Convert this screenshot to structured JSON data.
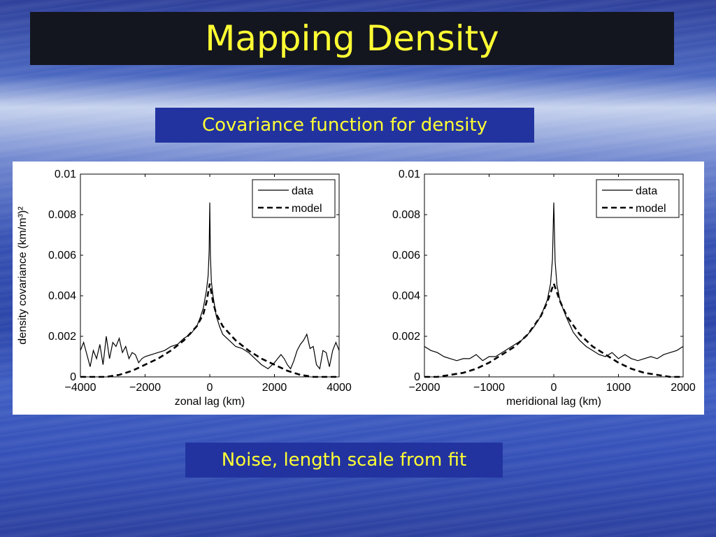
{
  "slide": {
    "title": "Mapping Density",
    "caption_top": "Covariance function for density",
    "caption_bottom": "Noise, length scale from fit"
  },
  "chart_data": [
    {
      "type": "line",
      "xlabel": "zonal lag (km)",
      "ylabel": "density covariance (km/m³)²",
      "xlim": [
        -4000,
        4000
      ],
      "ylim": [
        0,
        0.01
      ],
      "xticks": [
        -4000,
        -2000,
        0,
        2000,
        4000
      ],
      "xtick_labels": [
        "−4000",
        "−2000",
        "0",
        "2000",
        "4000"
      ],
      "yticks": [
        0,
        0.002,
        0.004,
        0.006,
        0.008,
        0.01
      ],
      "ytick_labels": [
        "0",
        "0.002",
        "0.004",
        "0.006",
        "0.008",
        "0.01"
      ],
      "legend_position": "top-right",
      "series": [
        {
          "name": "data",
          "style": "solid",
          "x": [
            -4000,
            -3900,
            -3800,
            -3700,
            -3600,
            -3500,
            -3400,
            -3300,
            -3200,
            -3100,
            -3000,
            -2900,
            -2800,
            -2700,
            -2600,
            -2500,
            -2400,
            -2300,
            -2200,
            -2100,
            -2000,
            -1800,
            -1600,
            -1400,
            -1200,
            -1000,
            -800,
            -600,
            -400,
            -300,
            -200,
            -100,
            -50,
            -20,
            0,
            20,
            50,
            100,
            200,
            300,
            400,
            600,
            800,
            1000,
            1200,
            1400,
            1600,
            1800,
            2000,
            2100,
            2200,
            2300,
            2400,
            2500,
            2600,
            2700,
            2800,
            2900,
            3000,
            3100,
            3200,
            3300,
            3400,
            3500,
            3600,
            3700,
            3800,
            3900,
            4000
          ],
          "y": [
            0.0013,
            0.0017,
            0.0011,
            0.0005,
            0.0013,
            0.0009,
            0.0016,
            0.0006,
            0.002,
            0.0009,
            0.0017,
            0.0015,
            0.0019,
            0.0012,
            0.0015,
            0.0009,
            0.0012,
            0.0011,
            0.0007,
            0.0009,
            0.001,
            0.0011,
            0.0012,
            0.0013,
            0.0015,
            0.0016,
            0.0019,
            0.0021,
            0.0025,
            0.0029,
            0.0034,
            0.0043,
            0.005,
            0.0062,
            0.0086,
            0.006,
            0.0047,
            0.004,
            0.003,
            0.0025,
            0.0021,
            0.0018,
            0.0015,
            0.0014,
            0.0012,
            0.0009,
            0.0006,
            0.0004,
            0.0007,
            0.0009,
            0.0011,
            0.0009,
            0.0006,
            0.0004,
            0.0008,
            0.0013,
            0.0016,
            0.0018,
            0.0021,
            0.0014,
            0.0015,
            0.0006,
            0.0004,
            0.0013,
            0.0012,
            0.0005,
            0.0013,
            0.0017,
            0.0013
          ]
        },
        {
          "name": "model",
          "style": "dashed",
          "x": [
            -4000,
            -3600,
            -3200,
            -2800,
            -2400,
            -2000,
            -1600,
            -1200,
            -800,
            -400,
            -200,
            -100,
            0,
            100,
            200,
            400,
            800,
            1200,
            1600,
            2000,
            2400,
            2800,
            3200,
            3600,
            4000
          ],
          "y": [
            0,
            0,
            0,
            0.0001,
            0.0003,
            0.0006,
            0.0009,
            0.0013,
            0.0018,
            0.0025,
            0.0031,
            0.0037,
            0.0046,
            0.0037,
            0.0031,
            0.0025,
            0.0018,
            0.0013,
            0.0009,
            0.0006,
            0.0003,
            0.0001,
            0,
            0,
            0
          ]
        }
      ]
    },
    {
      "type": "line",
      "xlabel": "meridional lag (km)",
      "ylabel": "",
      "xlim": [
        -2000,
        2000
      ],
      "ylim": [
        0,
        0.01
      ],
      "xticks": [
        -2000,
        -1000,
        0,
        1000,
        2000
      ],
      "xtick_labels": [
        "−2000",
        "−1000",
        "0",
        "1000",
        "2000"
      ],
      "yticks": [
        0,
        0.002,
        0.004,
        0.006,
        0.008,
        0.01
      ],
      "ytick_labels": [
        "0",
        "0.002",
        "0.004",
        "0.006",
        "0.008",
        "0.01"
      ],
      "legend_position": "top-right",
      "series": [
        {
          "name": "data",
          "style": "solid",
          "x": [
            -2000,
            -1900,
            -1800,
            -1700,
            -1600,
            -1500,
            -1400,
            -1300,
            -1200,
            -1100,
            -1000,
            -900,
            -800,
            -700,
            -600,
            -500,
            -400,
            -300,
            -200,
            -100,
            -50,
            -20,
            0,
            20,
            50,
            100,
            200,
            300,
            400,
            500,
            600,
            700,
            800,
            900,
            1000,
            1100,
            1200,
            1300,
            1400,
            1500,
            1600,
            1700,
            1800,
            1900,
            2000
          ],
          "y": [
            0.0015,
            0.0013,
            0.0012,
            0.001,
            0.0009,
            0.0008,
            0.0009,
            0.0009,
            0.0011,
            0.0008,
            0.001,
            0.001,
            0.0012,
            0.0014,
            0.0016,
            0.0018,
            0.0021,
            0.0025,
            0.003,
            0.0038,
            0.0046,
            0.0058,
            0.0086,
            0.0057,
            0.0045,
            0.0037,
            0.0029,
            0.0022,
            0.0018,
            0.0015,
            0.0013,
            0.0011,
            0.001,
            0.0012,
            0.0009,
            0.0011,
            0.0009,
            0.0008,
            0.0009,
            0.001,
            0.0009,
            0.0011,
            0.0012,
            0.0013,
            0.0015
          ]
        },
        {
          "name": "model",
          "style": "dashed",
          "x": [
            -2000,
            -1800,
            -1600,
            -1400,
            -1200,
            -1000,
            -800,
            -600,
            -400,
            -200,
            -100,
            0,
            100,
            200,
            400,
            600,
            800,
            1000,
            1200,
            1400,
            1600,
            1800,
            2000
          ],
          "y": [
            0,
            0,
            0.0001,
            0.0002,
            0.0004,
            0.0007,
            0.0011,
            0.0015,
            0.0021,
            0.003,
            0.0037,
            0.0046,
            0.0037,
            0.003,
            0.0021,
            0.0015,
            0.0011,
            0.0007,
            0.0004,
            0.0002,
            0.0001,
            0,
            0
          ]
        }
      ]
    }
  ]
}
